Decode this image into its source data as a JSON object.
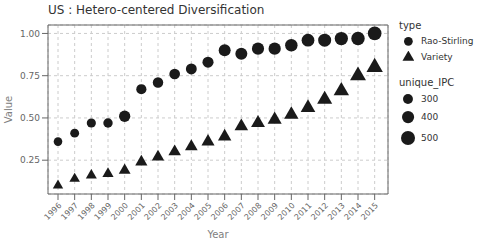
{
  "chart_data": {
    "type": "scatter",
    "title": "US : Hetero-centered Diversification",
    "xlabel": "Year",
    "ylabel": "Value",
    "x": [
      1996,
      1997,
      1998,
      1999,
      2000,
      2001,
      2002,
      2003,
      2004,
      2005,
      2006,
      2007,
      2008,
      2009,
      2010,
      2011,
      2012,
      2013,
      2014,
      2015
    ],
    "series": [
      {
        "name": "Rao-Stirling",
        "color": "#1a1a1a",
        "marker": "circle",
        "values": [
          0.36,
          0.41,
          0.47,
          0.47,
          0.51,
          0.67,
          0.71,
          0.76,
          0.79,
          0.83,
          0.9,
          0.88,
          0.91,
          0.91,
          0.93,
          0.96,
          0.96,
          0.97,
          0.97,
          1.0
        ],
        "sizes": [
          250,
          260,
          270,
          280,
          360,
          310,
          320,
          330,
          340,
          350,
          390,
          390,
          400,
          405,
          415,
          430,
          445,
          455,
          465,
          480
        ]
      },
      {
        "name": "Variety",
        "color": "#1a1a1a",
        "marker": "triangle",
        "values": [
          0.1,
          0.14,
          0.16,
          0.17,
          0.19,
          0.24,
          0.27,
          0.3,
          0.33,
          0.36,
          0.39,
          0.45,
          0.47,
          0.49,
          0.52,
          0.56,
          0.61,
          0.66,
          0.75,
          0.8
        ],
        "sizes": [
          220,
          225,
          235,
          240,
          255,
          265,
          270,
          275,
          280,
          290,
          300,
          305,
          315,
          320,
          330,
          340,
          355,
          365,
          385,
          400
        ]
      }
    ],
    "xlim": [
      1995.4,
      2015.8
    ],
    "xticks": [
      1996,
      1997,
      1998,
      1999,
      2000,
      2001,
      2002,
      2003,
      2004,
      2005,
      2006,
      2007,
      2008,
      2009,
      2010,
      2011,
      2012,
      2013,
      2014,
      2015
    ],
    "ylim": [
      0.05,
      1.05
    ],
    "yticks": [
      0.25,
      {
        "value": 0.5,
        "label": "0.50"
      },
      0.75,
      {
        "value": 1.0,
        "label": "1.00"
      }
    ],
    "grid": true,
    "legend": "right",
    "legend_title": "type",
    "size_lim": [
      200,
      550
    ],
    "size_legend": {
      "title": "unique_IPC",
      "values": [
        300,
        400,
        500
      ]
    }
  }
}
